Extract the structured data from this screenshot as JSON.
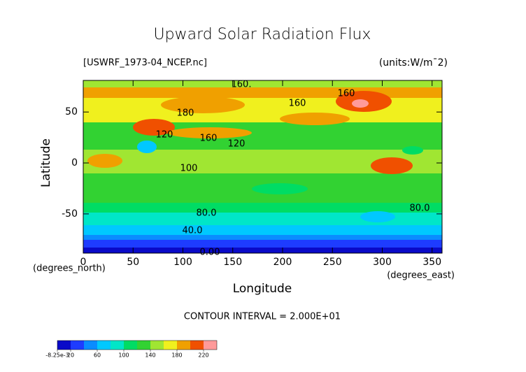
{
  "chart_data": {
    "type": "contour",
    "title": "Upward Solar Radiation Flux",
    "subtitle_left": "[USWRF_1973-04_NCEP.nc]",
    "subtitle_right": "(units:W/m¯2)",
    "x_label": "Longitude",
    "y_label": "Latitude",
    "x_unit_label": "(degrees_east)",
    "y_unit_label": "(degrees_north)",
    "footnote": "CONTOUR INTERVAL = 2.000E+01",
    "xlim": [
      0,
      360
    ],
    "ylim": [
      -88.5,
      81
    ],
    "xticks": [
      0,
      50,
      100,
      150,
      200,
      250,
      300,
      350
    ],
    "yticks": [
      -50,
      0,
      50
    ],
    "contour_labels": [
      "160.",
      "160",
      "160",
      "180",
      "120",
      "160",
      "120",
      "100",
      "80.0",
      "80.0",
      "40.0",
      "0.00"
    ],
    "colorbar": {
      "lim": [
        0,
        240
      ],
      "levels": [
        0,
        20,
        40,
        60,
        80,
        100,
        120,
        140,
        160,
        180,
        200,
        220
      ],
      "colors": [
        "#0a0ac8",
        "#1e3cff",
        "#0a8cff",
        "#00c8ff",
        "#00e6c8",
        "#00dc64",
        "#32d232",
        "#a0e632",
        "#f0f01e",
        "#f0a000",
        "#f05000",
        "#ff9a9a"
      ],
      "ticks": [
        {
          "value": 0,
          "label": "-8.25e-3"
        },
        20,
        60,
        100,
        140,
        180,
        220
      ]
    }
  }
}
